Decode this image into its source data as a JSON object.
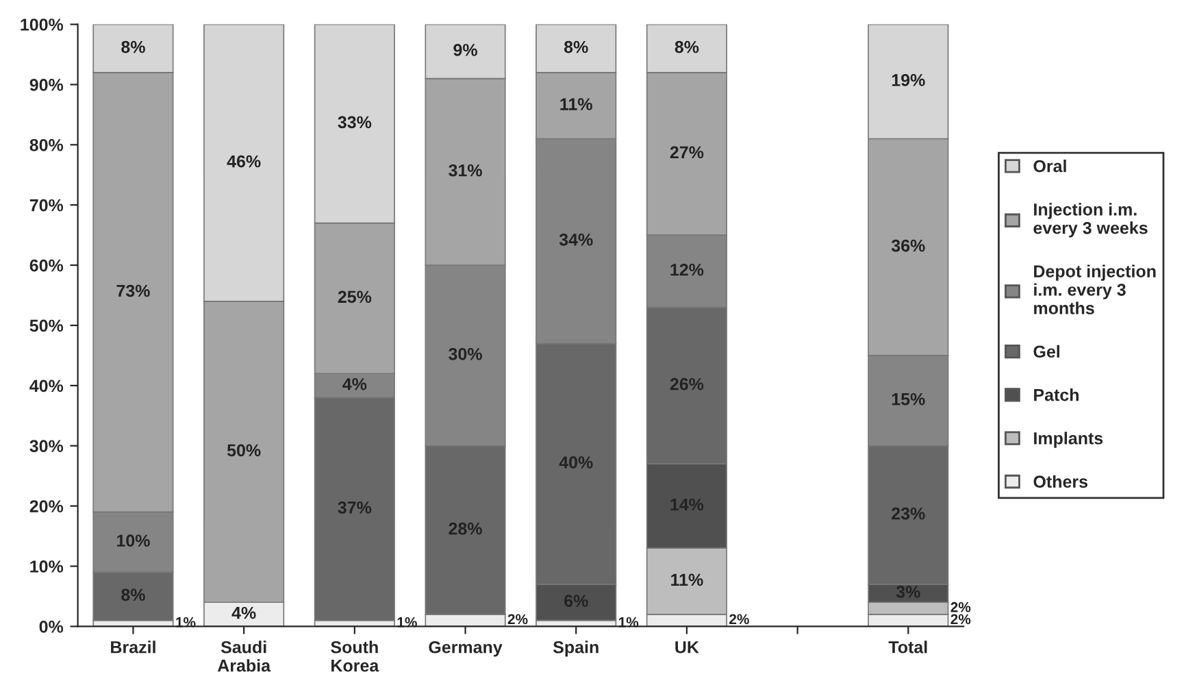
{
  "chart_data": {
    "type": "bar",
    "stacked": true,
    "legend": "right",
    "categories": [
      "Brazil",
      "Saudi Arabia",
      "South Korea",
      "Germany",
      "Spain",
      "UK",
      null,
      "Total"
    ],
    "ylim": [
      0,
      100
    ],
    "yticks": [
      {
        "value": 0,
        "label": "0%"
      },
      {
        "value": 10,
        "label": "10%"
      },
      {
        "value": 20,
        "label": "20%"
      },
      {
        "value": 30,
        "label": "30%"
      },
      {
        "value": 40,
        "label": "40%"
      },
      {
        "value": 50,
        "label": "50%"
      },
      {
        "value": 60,
        "label": "60%"
      },
      {
        "value": 70,
        "label": "70%"
      },
      {
        "value": 80,
        "label": "80%"
      },
      {
        "value": 90,
        "label": "90%"
      },
      {
        "value": 100,
        "label": "100%"
      }
    ],
    "series": [
      {
        "name": "Others",
        "color": "#ececec",
        "values": [
          1,
          4,
          1,
          2,
          1,
          2,
          null,
          2
        ],
        "value_labels": [
          "1%",
          "4%",
          "1%",
          "2%",
          "1%",
          "2%",
          null,
          "2%"
        ]
      },
      {
        "name": "Implants",
        "color": "#bdbdbd",
        "values": [
          null,
          null,
          null,
          null,
          null,
          11,
          null,
          2
        ],
        "value_labels": [
          null,
          null,
          null,
          null,
          null,
          "11%",
          null,
          "2%"
        ]
      },
      {
        "name": "Patch",
        "color": "#505050",
        "values": [
          null,
          null,
          null,
          null,
          6,
          14,
          null,
          3
        ],
        "value_labels": [
          null,
          null,
          null,
          null,
          "6%",
          "14%",
          null,
          "3%"
        ]
      },
      {
        "name": "Gel",
        "color": "#686868",
        "values": [
          8,
          null,
          37,
          28,
          40,
          26,
          null,
          23
        ],
        "value_labels": [
          "8%",
          null,
          "37%",
          "28%",
          "40%",
          "26%",
          null,
          "23%"
        ]
      },
      {
        "name": "Depot injection i.m. every 3 months",
        "color": "#858585",
        "values": [
          10,
          null,
          4,
          30,
          34,
          12,
          null,
          15
        ],
        "value_labels": [
          "10%",
          null,
          "4%",
          "30%",
          "34%",
          "12%",
          null,
          "15%"
        ]
      },
      {
        "name": "Injection i.m. every 3 weeks",
        "color": "#a5a5a5",
        "values": [
          73,
          50,
          25,
          31,
          11,
          27,
          null,
          36
        ],
        "value_labels": [
          "73%",
          "50%",
          "25%",
          "31%",
          "11%",
          "27%",
          null,
          "36%"
        ]
      },
      {
        "name": "Oral",
        "color": "#d6d6d6",
        "values": [
          8,
          46,
          33,
          9,
          8,
          8,
          null,
          19
        ],
        "value_labels": [
          "8%",
          "46%",
          "33%",
          "9%",
          "8%",
          "8%",
          null,
          "19%"
        ]
      }
    ]
  }
}
